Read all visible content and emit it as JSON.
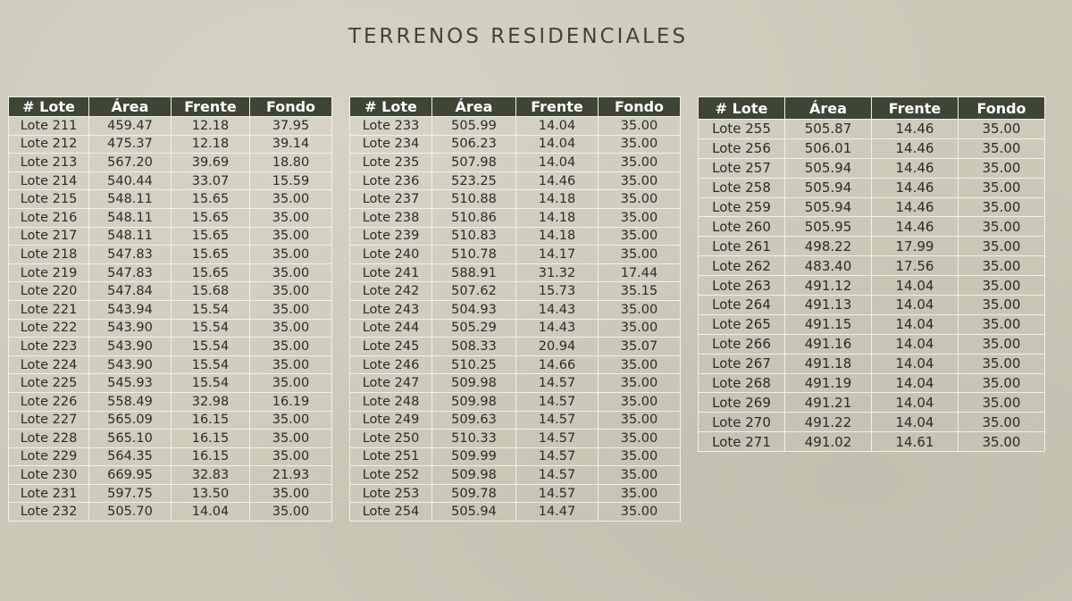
{
  "title": "TERRENOS RESIDENCIALES",
  "columns": [
    "# Lote",
    "Área",
    "Frente",
    "Fondo"
  ],
  "tables": [
    {
      "rows": [
        [
          "Lote 211",
          "459.47",
          "12.18",
          "37.95"
        ],
        [
          "Lote 212",
          "475.37",
          "12.18",
          "39.14"
        ],
        [
          "Lote 213",
          "567.20",
          "39.69",
          "18.80"
        ],
        [
          "Lote 214",
          "540.44",
          "33.07",
          "15.59"
        ],
        [
          "Lote 215",
          "548.11",
          "15.65",
          "35.00"
        ],
        [
          "Lote 216",
          "548.11",
          "15.65",
          "35.00"
        ],
        [
          "Lote 217",
          "548.11",
          "15.65",
          "35.00"
        ],
        [
          "Lote 218",
          "547.83",
          "15.65",
          "35.00"
        ],
        [
          "Lote 219",
          "547.83",
          "15.65",
          "35.00"
        ],
        [
          "Lote 220",
          "547.84",
          "15.68",
          "35.00"
        ],
        [
          "Lote 221",
          "543.94",
          "15.54",
          "35.00"
        ],
        [
          "Lote 222",
          "543.90",
          "15.54",
          "35.00"
        ],
        [
          "Lote 223",
          "543.90",
          "15.54",
          "35.00"
        ],
        [
          "Lote 224",
          "543.90",
          "15.54",
          "35.00"
        ],
        [
          "Lote 225",
          "545.93",
          "15.54",
          "35.00"
        ],
        [
          "Lote 226",
          "558.49",
          "32.98",
          "16.19"
        ],
        [
          "Lote 227",
          "565.09",
          "16.15",
          "35.00"
        ],
        [
          "Lote 228",
          "565.10",
          "16.15",
          "35.00"
        ],
        [
          "Lote 229",
          "564.35",
          "16.15",
          "35.00"
        ],
        [
          "Lote 230",
          "669.95",
          "32.83",
          "21.93"
        ],
        [
          "Lote 231",
          "597.75",
          "13.50",
          "35.00"
        ],
        [
          "Lote 232",
          "505.70",
          "14.04",
          "35.00"
        ]
      ]
    },
    {
      "rows": [
        [
          "Lote 233",
          "505.99",
          "14.04",
          "35.00"
        ],
        [
          "Lote 234",
          "506.23",
          "14.04",
          "35.00"
        ],
        [
          "Lote 235",
          "507.98",
          "14.04",
          "35.00"
        ],
        [
          "Lote 236",
          "523.25",
          "14.46",
          "35.00"
        ],
        [
          "Lote 237",
          "510.88",
          "14.18",
          "35.00"
        ],
        [
          "Lote 238",
          "510.86",
          "14.18",
          "35.00"
        ],
        [
          "Lote 239",
          "510.83",
          "14.18",
          "35.00"
        ],
        [
          "Lote 240",
          "510.78",
          "14.17",
          "35.00"
        ],
        [
          "Lote 241",
          "588.91",
          "31.32",
          "17.44"
        ],
        [
          "Lote 242",
          "507.62",
          "15.73",
          "35.15"
        ],
        [
          "Lote 243",
          "504.93",
          "14.43",
          "35.00"
        ],
        [
          "Lote 244",
          "505.29",
          "14.43",
          "35.00"
        ],
        [
          "Lote 245",
          "508.33",
          "20.94",
          "35.07"
        ],
        [
          "Lote 246",
          "510.25",
          "14.66",
          "35.00"
        ],
        [
          "Lote 247",
          "509.98",
          "14.57",
          "35.00"
        ],
        [
          "Lote 248",
          "509.98",
          "14.57",
          "35.00"
        ],
        [
          "Lote 249",
          "509.63",
          "14.57",
          "35.00"
        ],
        [
          "Lote 250",
          "510.33",
          "14.57",
          "35.00"
        ],
        [
          "Lote 251",
          "509.99",
          "14.57",
          "35.00"
        ],
        [
          "Lote 252",
          "509.98",
          "14.57",
          "35.00"
        ],
        [
          "Lote 253",
          "509.78",
          "14.57",
          "35.00"
        ],
        [
          "Lote 254",
          "505.94",
          "14.47",
          "35.00"
        ]
      ]
    },
    {
      "rows": [
        [
          "Lote 255",
          "505.87",
          "14.46",
          "35.00"
        ],
        [
          "Lote 256",
          "506.01",
          "14.46",
          "35.00"
        ],
        [
          "Lote 257",
          "505.94",
          "14.46",
          "35.00"
        ],
        [
          "Lote 258",
          "505.94",
          "14.46",
          "35.00"
        ],
        [
          "Lote 259",
          "505.94",
          "14.46",
          "35.00"
        ],
        [
          "Lote 260",
          "505.95",
          "14.46",
          "35.00"
        ],
        [
          "Lote 261",
          "498.22",
          "17.99",
          "35.00"
        ],
        [
          "Lote 262",
          "483.40",
          "17.56",
          "35.00"
        ],
        [
          "Lote 263",
          "491.12",
          "14.04",
          "35.00"
        ],
        [
          "Lote 264",
          "491.13",
          "14.04",
          "35.00"
        ],
        [
          "Lote 265",
          "491.15",
          "14.04",
          "35.00"
        ],
        [
          "Lote 266",
          "491.16",
          "14.04",
          "35.00"
        ],
        [
          "Lote 267",
          "491.18",
          "14.04",
          "35.00"
        ],
        [
          "Lote 268",
          "491.19",
          "14.04",
          "35.00"
        ],
        [
          "Lote 269",
          "491.21",
          "14.04",
          "35.00"
        ],
        [
          "Lote 270",
          "491.22",
          "14.04",
          "35.00"
        ],
        [
          "Lote 271",
          "491.02",
          "14.61",
          "35.00"
        ]
      ]
    }
  ],
  "colors": {
    "header_bg": "#3d4535",
    "page_bg": "#cdc9b9",
    "grid": "#f2f0e8"
  }
}
